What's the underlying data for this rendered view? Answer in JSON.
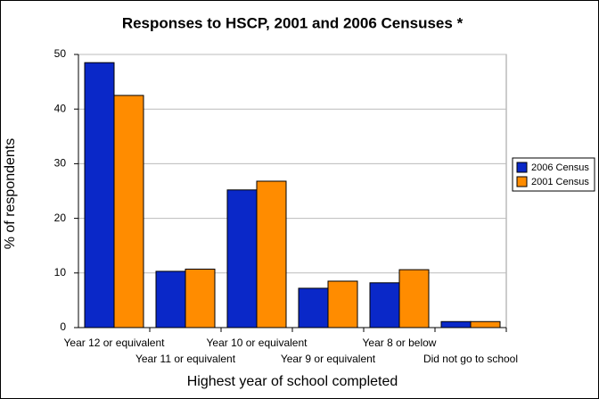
{
  "chart_data": {
    "type": "bar",
    "title": "Responses to HSCP, 2001 and 2006 Censuses *",
    "x_label": "Highest year of school completed",
    "y_label": "% of respondents",
    "categories": [
      "Year 12 or equivalent",
      "Year 11 or equivalent",
      "Year 10 or equivalent",
      "Year 9 or equivalent",
      "Year 8 or below",
      "Did not go to school"
    ],
    "series": [
      {
        "name": "2006 Census",
        "color": "#0a28c8",
        "values": [
          48.5,
          10.3,
          25.2,
          7.2,
          8.2,
          1.1
        ]
      },
      {
        "name": "2001 Census",
        "color": "#ff8c00",
        "values": [
          42.5,
          10.7,
          26.8,
          8.5,
          10.6,
          1.1
        ]
      }
    ],
    "ylim": [
      0,
      50
    ],
    "yticks": [
      0,
      10,
      20,
      30,
      40,
      50
    ],
    "grid": true,
    "legend": "right"
  }
}
